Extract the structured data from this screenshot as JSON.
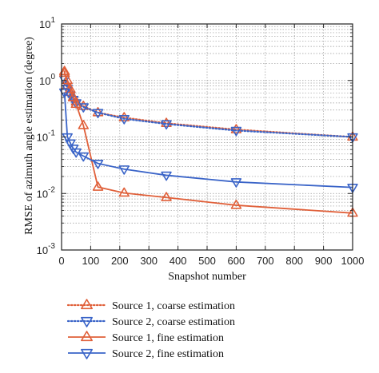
{
  "chart_data": {
    "type": "line",
    "xlabel": "Snapshot number",
    "ylabel": "RMSE of azimuth angle estimation (degree)",
    "xlim": [
      0,
      1000
    ],
    "ylim": [
      0.001,
      10
    ],
    "yscale": "log",
    "grid": true,
    "legend_placement": "bottom-outside",
    "x_ticks": [
      "0",
      "100",
      "200",
      "300",
      "400",
      "500",
      "600",
      "700",
      "800",
      "900",
      "1000"
    ],
    "y_ticks": [
      {
        "base": "10",
        "exp": "-3"
      },
      {
        "base": "10",
        "exp": "-2"
      },
      {
        "base": "10",
        "exp": "-1"
      },
      {
        "base": "10",
        "exp": "0"
      },
      {
        "base": "10",
        "exp": "1"
      }
    ],
    "x": [
      10,
      20,
      30,
      40,
      50,
      75,
      125,
      215,
      360,
      600,
      1000
    ],
    "series": [
      {
        "name": "Source 1, coarse estimation",
        "color": "#e0603a",
        "line_style": "dotted",
        "marker": "triangle-up",
        "values": [
          1.45,
          0.82,
          0.62,
          0.5,
          0.42,
          0.35,
          0.27,
          0.22,
          0.175,
          0.135,
          0.1
        ]
      },
      {
        "name": "Source 2, coarse estimation",
        "color": "#3a64c8",
        "line_style": "dotted",
        "marker": "triangle-down",
        "values": [
          1.05,
          0.72,
          0.55,
          0.46,
          0.4,
          0.34,
          0.27,
          0.21,
          0.17,
          0.13,
          0.1
        ]
      },
      {
        "name": "Source 1, fine estimation",
        "color": "#e0603a",
        "line_style": "solid",
        "marker": "triangle-up",
        "values": [
          1.35,
          1.0,
          0.7,
          0.5,
          0.38,
          0.16,
          0.013,
          0.0102,
          0.0085,
          0.0062,
          0.0045
        ]
      },
      {
        "name": "Source 2, fine estimation",
        "color": "#3a64c8",
        "line_style": "solid",
        "marker": "triangle-down",
        "values": [
          0.62,
          0.1,
          0.078,
          0.063,
          0.054,
          0.046,
          0.034,
          0.027,
          0.021,
          0.016,
          0.0128
        ]
      }
    ]
  }
}
